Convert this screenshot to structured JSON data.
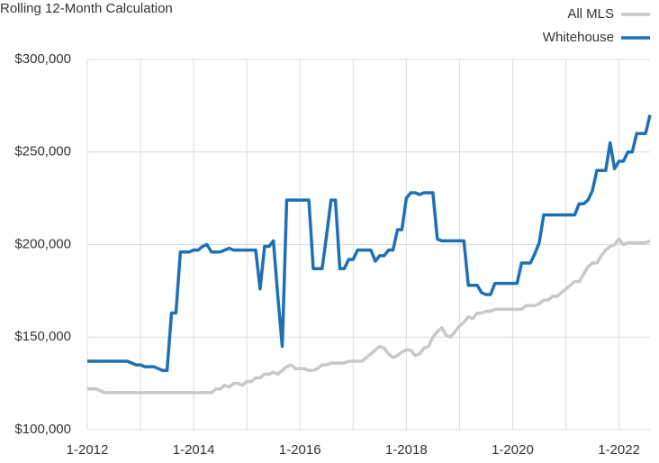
{
  "chart_data": {
    "type": "line",
    "title": "Rolling 12-Month Calculation",
    "x": [
      "1-2012",
      "2-2012",
      "3-2012",
      "4-2012",
      "5-2012",
      "6-2012",
      "7-2012",
      "8-2012",
      "9-2012",
      "10-2012",
      "11-2012",
      "12-2012",
      "1-2013",
      "2-2013",
      "3-2013",
      "4-2013",
      "5-2013",
      "6-2013",
      "7-2013",
      "8-2013",
      "9-2013",
      "10-2013",
      "11-2013",
      "12-2013",
      "1-2014",
      "2-2014",
      "3-2014",
      "4-2014",
      "5-2014",
      "6-2014",
      "7-2014",
      "8-2014",
      "9-2014",
      "10-2014",
      "11-2014",
      "12-2014",
      "1-2015",
      "2-2015",
      "3-2015",
      "4-2015",
      "5-2015",
      "6-2015",
      "7-2015",
      "8-2015",
      "9-2015",
      "10-2015",
      "11-2015",
      "12-2015",
      "1-2016",
      "2-2016",
      "3-2016",
      "4-2016",
      "5-2016",
      "6-2016",
      "7-2016",
      "8-2016",
      "9-2016",
      "10-2016",
      "11-2016",
      "12-2016",
      "1-2017",
      "2-2017",
      "3-2017",
      "4-2017",
      "5-2017",
      "6-2017",
      "7-2017",
      "8-2017",
      "9-2017",
      "10-2017",
      "11-2017",
      "12-2017",
      "1-2018",
      "2-2018",
      "3-2018",
      "4-2018",
      "5-2018",
      "6-2018",
      "7-2018",
      "8-2018",
      "9-2018",
      "10-2018",
      "11-2018",
      "12-2018",
      "1-2019",
      "2-2019",
      "3-2019",
      "4-2019",
      "5-2019",
      "6-2019",
      "7-2019",
      "8-2019",
      "9-2019",
      "10-2019",
      "11-2019",
      "12-2019",
      "1-2020",
      "2-2020",
      "3-2020",
      "4-2020",
      "5-2020",
      "6-2020",
      "7-2020",
      "8-2020",
      "9-2020",
      "10-2020",
      "11-2020",
      "12-2020",
      "1-2021",
      "2-2021",
      "3-2021",
      "4-2021",
      "5-2021",
      "6-2021",
      "7-2021",
      "8-2021",
      "9-2021",
      "10-2021",
      "11-2021",
      "12-2021",
      "1-2022",
      "2-2022",
      "3-2022",
      "4-2022",
      "5-2022",
      "6-2022",
      "7-2022",
      "8-2022"
    ],
    "series": [
      {
        "name": "All MLS",
        "color": "#c8c8c8",
        "values": [
          122000,
          122000,
          122000,
          121000,
          120000,
          120000,
          120000,
          120000,
          120000,
          120000,
          120000,
          120000,
          120000,
          120000,
          120000,
          120000,
          120000,
          120000,
          120000,
          120000,
          120000,
          120000,
          120000,
          120000,
          120000,
          120000,
          120000,
          120000,
          120000,
          122000,
          122000,
          124000,
          123000,
          125000,
          125000,
          124000,
          126000,
          126000,
          128000,
          128000,
          130000,
          130000,
          131000,
          130000,
          132000,
          134000,
          135000,
          133000,
          133000,
          133000,
          132000,
          132000,
          133000,
          135000,
          135000,
          136000,
          136000,
          136000,
          136000,
          137000,
          137000,
          137000,
          137000,
          139000,
          141000,
          143000,
          145000,
          144000,
          141000,
          139000,
          140000,
          142000,
          143000,
          143000,
          140000,
          141000,
          144000,
          145000,
          150000,
          153000,
          155000,
          151000,
          150000,
          153000,
          156000,
          158000,
          161000,
          160000,
          163000,
          163000,
          164000,
          164000,
          165000,
          165000,
          165000,
          165000,
          165000,
          165000,
          165000,
          167000,
          167000,
          167000,
          168000,
          170000,
          170000,
          172000,
          172000,
          174000,
          176000,
          178000,
          180000,
          180000,
          184000,
          188000,
          190000,
          190000,
          194000,
          197000,
          199000,
          200000,
          203000,
          200000,
          201000,
          201000,
          201000,
          201000,
          201000,
          202000
        ]
      },
      {
        "name": "Whitehouse",
        "color": "#1f6fb5",
        "values": [
          137000,
          137000,
          137000,
          137000,
          137000,
          137000,
          137000,
          137000,
          137000,
          137000,
          136000,
          135000,
          135000,
          134000,
          134000,
          134000,
          133000,
          132000,
          132000,
          163000,
          163000,
          196000,
          196000,
          196000,
          197000,
          197000,
          199000,
          200000,
          196000,
          196000,
          196000,
          197000,
          198000,
          197000,
          197000,
          197000,
          197000,
          197000,
          197000,
          176000,
          199000,
          199000,
          202000,
          172000,
          145000,
          224000,
          224000,
          224000,
          224000,
          224000,
          224000,
          187000,
          187000,
          187000,
          205000,
          224000,
          224000,
          187000,
          187000,
          192000,
          192000,
          197000,
          197000,
          197000,
          197000,
          191000,
          194000,
          194000,
          197000,
          197000,
          208000,
          208000,
          225000,
          228000,
          228000,
          227000,
          228000,
          228000,
          228000,
          203000,
          202000,
          202000,
          202000,
          202000,
          202000,
          202000,
          178000,
          178000,
          178000,
          174000,
          173000,
          173000,
          179000,
          179000,
          179000,
          179000,
          179000,
          179000,
          190000,
          190000,
          190000,
          195000,
          201000,
          216000,
          216000,
          216000,
          216000,
          216000,
          216000,
          216000,
          216000,
          222000,
          222000,
          224000,
          229000,
          240000,
          240000,
          240000,
          255000,
          241000,
          245000,
          245000,
          250000,
          250000,
          260000,
          260000,
          260000,
          270000
        ]
      }
    ],
    "xticks": [
      "1-2012",
      "1-2014",
      "1-2016",
      "1-2018",
      "1-2020",
      "1-2022"
    ],
    "xgrid": [
      "1-2012",
      "1-2013",
      "1-2014",
      "1-2015",
      "1-2016",
      "1-2017",
      "1-2018",
      "1-2019",
      "1-2020",
      "1-2021",
      "1-2022"
    ],
    "ylim": [
      100000,
      300000
    ],
    "yticks": [
      {
        "value": 100000,
        "label": "$100,000"
      },
      {
        "value": 150000,
        "label": "$150,000"
      },
      {
        "value": 200000,
        "label": "$200,000"
      },
      {
        "value": 250000,
        "label": "$250,000"
      },
      {
        "value": 300000,
        "label": "$300,000"
      }
    ],
    "grid": true,
    "legend": "top-right"
  }
}
